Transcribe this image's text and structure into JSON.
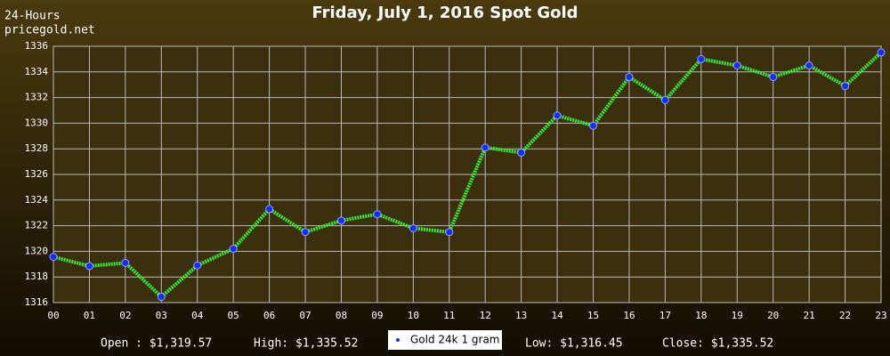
{
  "chart_data": {
    "type": "line",
    "title": "Friday, July 1, 2016 Spot Gold",
    "subtitle": [
      "24-Hours",
      "pricegold.net"
    ],
    "categories": [
      "00",
      "01",
      "02",
      "03",
      "04",
      "05",
      "06",
      "07",
      "08",
      "09",
      "10",
      "11",
      "12",
      "13",
      "14",
      "15",
      "16",
      "17",
      "18",
      "19",
      "20",
      "21",
      "22",
      "23"
    ],
    "series": [
      {
        "name": "Gold 24k 1 gram",
        "color": "#33ee33",
        "marker_color": "#1030ff",
        "values": [
          1319.57,
          1318.85,
          1319.1,
          1316.45,
          1318.9,
          1320.2,
          1323.3,
          1321.5,
          1322.4,
          1322.9,
          1321.8,
          1321.5,
          1328.1,
          1327.7,
          1330.6,
          1329.8,
          1333.6,
          1331.8,
          1335.0,
          1334.5,
          1333.6,
          1334.5,
          1332.9,
          1335.52
        ]
      }
    ],
    "ylim": [
      1316,
      1336
    ],
    "yticks": [
      1316,
      1318,
      1320,
      1322,
      1324,
      1326,
      1328,
      1330,
      1332,
      1334,
      1336
    ],
    "grid": true,
    "annotations": [
      "Open : $1,319.57",
      "High: $1,335.52",
      "Low: $1,316.45",
      "Close: $1,335.52"
    ]
  }
}
